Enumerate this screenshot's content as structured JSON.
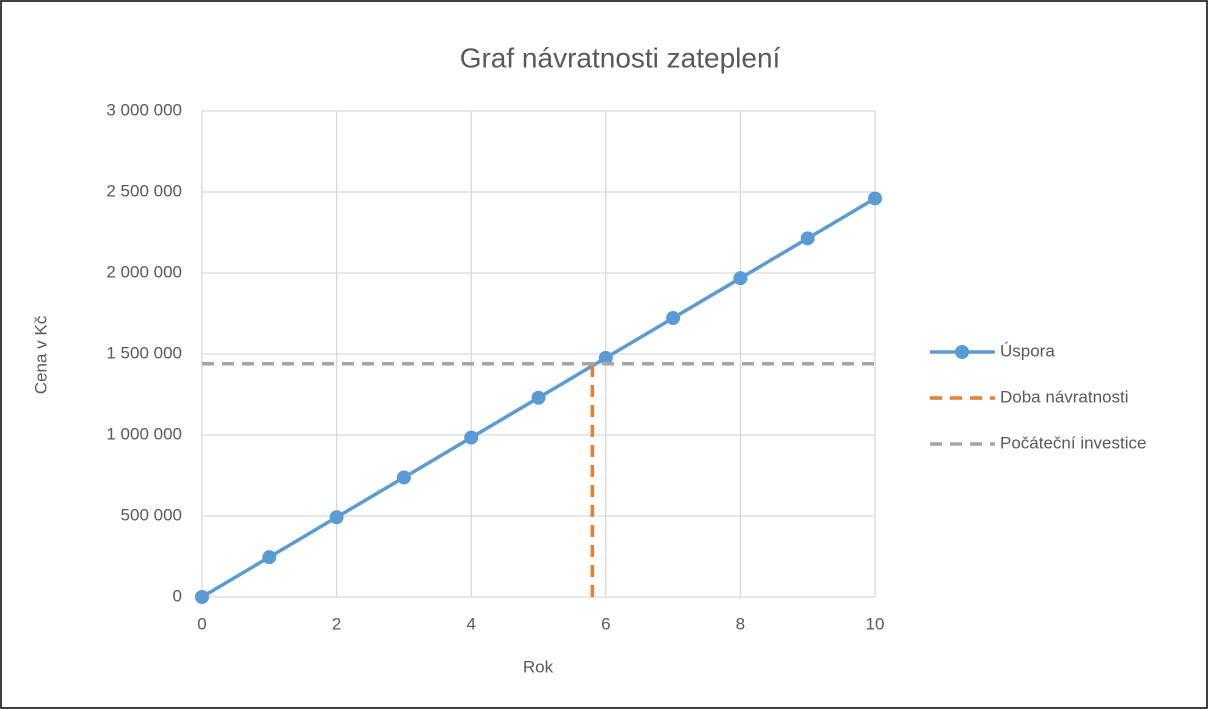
{
  "chart_data": {
    "type": "line",
    "title": "Graf návratnosti zateplení",
    "xlabel": "Rok",
    "ylabel": "Cena v Kč",
    "xlim": [
      0,
      10
    ],
    "xticks": [
      0,
      2,
      4,
      6,
      8,
      10
    ],
    "ylim": [
      0,
      3000000
    ],
    "yticks": [
      0,
      {
        "value": 500000,
        "label": "500 000"
      },
      {
        "value": 1000000,
        "label": "1 000 000"
      },
      {
        "value": 1500000,
        "label": "1 500 000"
      },
      {
        "value": 2000000,
        "label": "2 000 000"
      },
      {
        "value": 2500000,
        "label": "2 500 000"
      },
      {
        "value": 3000000,
        "label": "3 000 000"
      }
    ],
    "grid": true,
    "legend": "right",
    "series": [
      {
        "name": "Úspora",
        "color": "#5b9bd5",
        "dashed": false,
        "markers": true,
        "x": [
          0,
          1,
          2,
          3,
          4,
          5,
          6,
          7,
          8,
          9,
          10
        ],
        "values": [
          0,
          246000,
          492000,
          738000,
          984000,
          1230000,
          1476000,
          1722000,
          1968000,
          2214000,
          2460000
        ]
      },
      {
        "name": "Doba návratnosti",
        "color": "#ed7d31",
        "dashed": true,
        "markers": false,
        "x": [
          5.8,
          5.8
        ],
        "values": [
          0,
          1440000
        ]
      },
      {
        "name": "Počáteční investice",
        "color": "#a5a5a5",
        "dashed": true,
        "markers": false,
        "x": [
          0,
          10
        ],
        "values": [
          1440000,
          1440000
        ]
      }
    ]
  }
}
